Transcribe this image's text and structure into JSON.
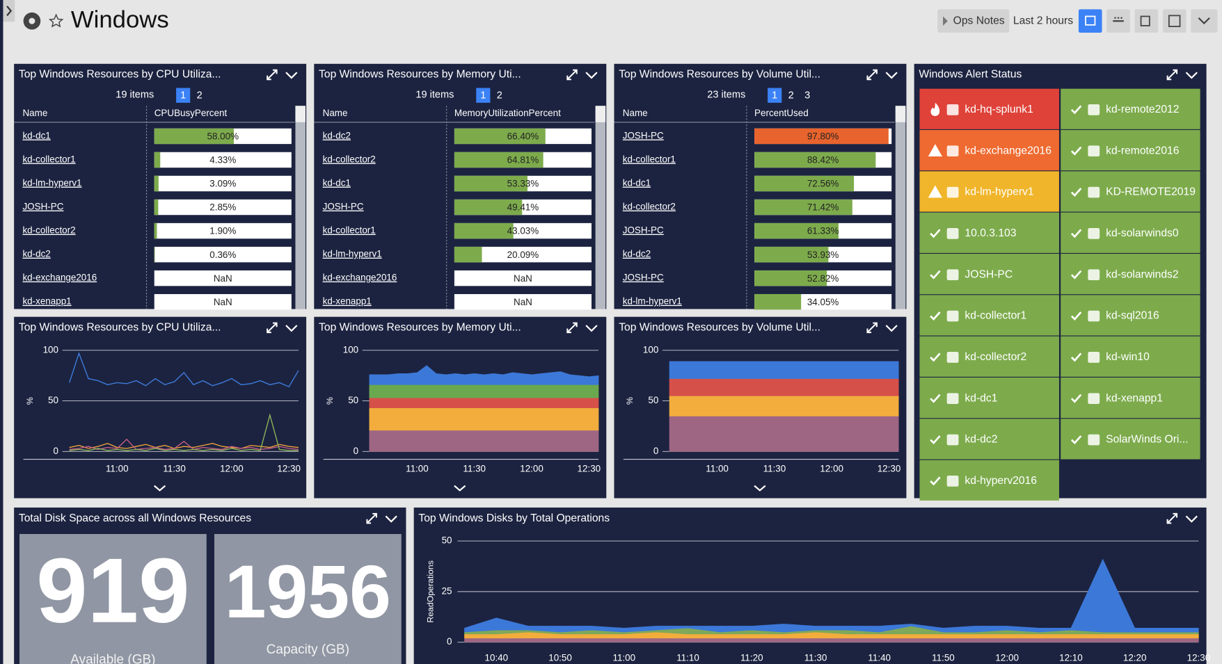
{
  "header": {
    "title": "Windows",
    "ops_notes": "Ops Notes",
    "time_range": "Last 2 hours"
  },
  "tables": [
    {
      "title": "Top Windows Resources by CPU Utiliza...",
      "items": "19 items",
      "pages": [
        "1",
        "2"
      ],
      "columns": [
        "Name",
        "CPUBusyPercent"
      ],
      "xlim": [
        0,
        100
      ],
      "names": [
        "kd-dc1",
        "kd-collector1",
        "kd-lm-hyperv1",
        "JOSH-PC",
        "kd-collector2",
        "kd-dc2",
        "kd-exchange2016",
        "kd-xenapp1"
      ],
      "values": [
        58.0,
        4.33,
        3.09,
        2.85,
        1.9,
        0.36,
        null,
        null
      ],
      "value_labels": [
        "58.00%",
        "4.33%",
        "3.09%",
        "2.85%",
        "1.90%",
        "0.36%",
        "NaN",
        "NaN"
      ],
      "colors": [
        "#7dab4c",
        "#7dab4c",
        "#7dab4c",
        "#7dab4c",
        "#7dab4c",
        "#7dab4c",
        "#7dab4c",
        "#7dab4c"
      ]
    },
    {
      "title": "Top Windows Resources by Memory Uti...",
      "items": "19 items",
      "pages": [
        "1",
        "2"
      ],
      "columns": [
        "Name",
        "MemoryUtilizationPercent"
      ],
      "xlim": [
        0,
        100
      ],
      "names": [
        "kd-dc2",
        "kd-collector2",
        "kd-dc1",
        "JOSH-PC",
        "kd-collector1",
        "kd-lm-hyperv1",
        "kd-exchange2016",
        "kd-xenapp1"
      ],
      "values": [
        66.4,
        64.81,
        53.33,
        49.41,
        43.03,
        20.09,
        null,
        null
      ],
      "value_labels": [
        "66.40%",
        "64.81%",
        "53.33%",
        "49.41%",
        "43.03%",
        "20.09%",
        "NaN",
        "NaN"
      ],
      "colors": [
        "#7dab4c",
        "#7dab4c",
        "#7dab4c",
        "#7dab4c",
        "#7dab4c",
        "#7dab4c",
        "#7dab4c",
        "#7dab4c"
      ]
    },
    {
      "title": "Top Windows Resources by Volume Util...",
      "items": "23 items",
      "pages": [
        "1",
        "2",
        "3"
      ],
      "columns": [
        "Name",
        "PercentUsed"
      ],
      "xlim": [
        0,
        100
      ],
      "names": [
        "JOSH-PC",
        "kd-collector1",
        "kd-dc1",
        "kd-collector2",
        "JOSH-PC",
        "kd-dc2",
        "JOSH-PC",
        "kd-lm-hyperv1"
      ],
      "values": [
        97.8,
        88.42,
        72.56,
        71.42,
        61.33,
        53.93,
        52.82,
        34.05
      ],
      "value_labels": [
        "97.80%",
        "88.42%",
        "72.56%",
        "71.42%",
        "61.33%",
        "53.93%",
        "52.82%",
        "34.05%"
      ],
      "colors": [
        "#e8632d",
        "#7dab4c",
        "#7dab4c",
        "#7dab4c",
        "#7dab4c",
        "#7dab4c",
        "#7dab4c",
        "#7dab4c"
      ]
    }
  ],
  "charts": [
    {
      "type": "line",
      "title": "Top Windows Resources by CPU Utiliza...",
      "y_label": "%",
      "ylim": [
        0,
        100
      ],
      "yticks": [
        0,
        50,
        100
      ],
      "x": [
        null,
        null,
        null,
        null,
        null,
        "11:00",
        null,
        null,
        null,
        null,
        null,
        "11:30",
        null,
        null,
        null,
        null,
        null,
        "12:00",
        null,
        null,
        null,
        null,
        null,
        "12:30",
        null
      ],
      "series": [
        {
          "color": "#3f7fe0",
          "values": [
            68,
            97,
            72,
            70,
            66,
            68,
            67,
            70,
            65,
            72,
            66,
            69,
            78,
            66,
            70,
            65,
            68,
            72,
            66,
            67,
            70,
            66,
            68,
            64,
            80
          ]
        },
        {
          "color": "#f0a23a",
          "values": [
            4,
            6,
            3,
            5,
            8,
            4,
            3,
            5,
            7,
            4,
            6,
            3,
            5,
            4,
            6,
            8,
            5,
            4,
            3,
            6,
            5,
            4,
            7,
            5,
            4
          ]
        },
        {
          "color": "#c95f8a",
          "values": [
            2,
            3,
            5,
            2,
            4,
            3,
            12,
            2,
            3,
            4,
            2,
            3,
            10,
            2,
            4,
            3,
            2,
            5,
            3,
            4,
            2,
            3,
            5,
            3,
            2
          ]
        },
        {
          "color": "#8fb85a",
          "values": [
            1,
            2,
            1,
            3,
            1,
            2,
            1,
            2,
            1,
            3,
            1,
            2,
            1,
            2,
            1,
            2,
            1,
            3,
            1,
            2,
            1,
            36,
            2,
            1,
            1
          ]
        }
      ]
    },
    {
      "type": "stacked_area",
      "title": "Top Windows Resources by Memory Uti...",
      "y_label": "%",
      "ylim": [
        0,
        100
      ],
      "yticks": [
        0,
        50,
        100
      ],
      "x": [
        null,
        null,
        null,
        null,
        null,
        "11:00",
        null,
        null,
        null,
        null,
        null,
        "11:30",
        null,
        null,
        null,
        null,
        null,
        "12:00",
        null,
        null,
        null,
        null,
        null,
        "12:30",
        null
      ],
      "series": [
        {
          "color": "#9e6683",
          "values": [
            21,
            21,
            21,
            21,
            21,
            21,
            21,
            21,
            21,
            21,
            21,
            21,
            21,
            21,
            21,
            21,
            21,
            21,
            21,
            21,
            21,
            21,
            21,
            21,
            21
          ]
        },
        {
          "color": "#f2ad3d",
          "values": [
            22,
            22,
            22,
            22,
            22,
            22,
            22,
            22,
            22,
            22,
            22,
            22,
            22,
            22,
            22,
            22,
            22,
            22,
            22,
            22,
            22,
            22,
            22,
            22,
            22
          ]
        },
        {
          "color": "#d6504a",
          "values": [
            10,
            10,
            10,
            10,
            10,
            10,
            10,
            10,
            10,
            10,
            10,
            10,
            10,
            10,
            10,
            10,
            10,
            10,
            10,
            10,
            10,
            10,
            10,
            10,
            10
          ]
        },
        {
          "color": "#6aa84f",
          "values": [
            13,
            13,
            13,
            13,
            13,
            13,
            13,
            13,
            13,
            13,
            13,
            13,
            13,
            13,
            13,
            13,
            13,
            13,
            13,
            13,
            13,
            13,
            13,
            13,
            13
          ]
        },
        {
          "color": "#3c78d8",
          "values": [
            10,
            10,
            10,
            11,
            11,
            12,
            19,
            11,
            10,
            11,
            10,
            11,
            10,
            11,
            10,
            12,
            11,
            10,
            11,
            12,
            13,
            10,
            9,
            8,
            9
          ]
        }
      ]
    },
    {
      "type": "stacked_area",
      "title": "Top Windows Resources by Volume Util...",
      "y_label": "%",
      "ylim": [
        0,
        100
      ],
      "yticks": [
        0,
        50,
        100
      ],
      "x": [
        null,
        null,
        null,
        null,
        null,
        "11:00",
        null,
        null,
        null,
        null,
        null,
        "11:30",
        null,
        null,
        null,
        null,
        null,
        "12:00",
        null,
        null,
        null,
        null,
        null,
        "12:30",
        null
      ],
      "series": [
        {
          "color": "#9e6683",
          "values": [
            35,
            35,
            35,
            35,
            35,
            35,
            35,
            35,
            35,
            35,
            35,
            35,
            35,
            35,
            35,
            35,
            35,
            35,
            35,
            35,
            35,
            35,
            35,
            35,
            35
          ]
        },
        {
          "color": "#f2ad3d",
          "values": [
            20,
            20,
            20,
            20,
            20,
            20,
            20,
            20,
            20,
            20,
            20,
            20,
            20,
            20,
            20,
            20,
            20,
            20,
            20,
            20,
            20,
            20,
            20,
            20,
            20
          ]
        },
        {
          "color": "#d6504a",
          "values": [
            17,
            17,
            17,
            17,
            17,
            17,
            17,
            17,
            17,
            17,
            17,
            17,
            17,
            17,
            17,
            17,
            17,
            17,
            17,
            17,
            17,
            17,
            17,
            17,
            17
          ]
        },
        {
          "color": "#3c78d8",
          "values": [
            17,
            17,
            17,
            17,
            17,
            17,
            17,
            17,
            17,
            17,
            17,
            17,
            17,
            17,
            17,
            17,
            17,
            17,
            17,
            17,
            17,
            17,
            17,
            17,
            17
          ]
        }
      ]
    },
    {
      "type": "stacked_area",
      "title": "Top Windows Disks by Total Operations",
      "y_label": "ReadOperations",
      "ylim": [
        0,
        50
      ],
      "yticks": [
        0,
        25,
        50
      ],
      "x": [
        null,
        "10:40",
        null,
        "10:50",
        null,
        "11:00",
        null,
        "11:10",
        null,
        "11:20",
        null,
        "11:30",
        null,
        "11:40",
        null,
        "11:50",
        null,
        "12:00",
        null,
        "12:10",
        null,
        "12:20",
        null,
        "12:30"
      ],
      "series": [
        {
          "color": "#9e6683",
          "values": [
            2,
            2,
            2,
            2,
            2,
            2,
            2,
            2,
            2,
            2,
            2,
            2,
            2,
            2,
            2,
            2,
            2,
            2,
            2,
            2,
            2,
            2,
            2,
            2
          ]
        },
        {
          "color": "#f2ad3d",
          "values": [
            2,
            2,
            3,
            2,
            2,
            2,
            3,
            2,
            2,
            2,
            2,
            3,
            2,
            2,
            2,
            2,
            2,
            2,
            2,
            2,
            2,
            2,
            2,
            2
          ]
        },
        {
          "color": "#7fa85a",
          "values": [
            1,
            2,
            1,
            1,
            2,
            1,
            1,
            3,
            1,
            2,
            1,
            1,
            2,
            1,
            4,
            1,
            1,
            2,
            1,
            2,
            1,
            1,
            1,
            1
          ]
        },
        {
          "color": "#3c78d8",
          "values": [
            2,
            6,
            2,
            3,
            2,
            2,
            2,
            1,
            3,
            2,
            4,
            2,
            2,
            3,
            1,
            2,
            3,
            2,
            2,
            1,
            36,
            2,
            2,
            2
          ]
        }
      ]
    }
  ],
  "disk_space": {
    "title": "Total Disk Space across all Windows Resources",
    "tiles": [
      {
        "value": 919,
        "label": "Available (GB)"
      },
      {
        "value": 1956,
        "label": "Capacity (GB)"
      }
    ]
  },
  "alerts": {
    "title": "Windows Alert Status",
    "status_colors": {
      "critical": "#df4239",
      "error": "#ee6a30",
      "warning": "#f0b52a",
      "ok": "#7dab4c"
    },
    "columns": [
      [
        {
          "name": "kd-hq-splunk1",
          "status": "critical"
        },
        {
          "name": "kd-exchange2016",
          "status": "error"
        },
        {
          "name": "kd-lm-hyperv1",
          "status": "warning"
        },
        {
          "name": "10.0.3.103",
          "status": "ok"
        },
        {
          "name": "JOSH-PC",
          "status": "ok"
        },
        {
          "name": "kd-collector1",
          "status": "ok"
        },
        {
          "name": "kd-collector2",
          "status": "ok"
        },
        {
          "name": "kd-dc1",
          "status": "ok"
        },
        {
          "name": "kd-dc2",
          "status": "ok"
        },
        {
          "name": "kd-hyperv2016",
          "status": "ok"
        }
      ],
      [
        {
          "name": "kd-remote2012",
          "status": "ok"
        },
        {
          "name": "kd-remote2016",
          "status": "ok"
        },
        {
          "name": "KD-REMOTE2019",
          "status": "ok"
        },
        {
          "name": "kd-solarwinds0",
          "status": "ok"
        },
        {
          "name": "kd-solarwinds2",
          "status": "ok"
        },
        {
          "name": "kd-sql2016",
          "status": "ok"
        },
        {
          "name": "kd-win10",
          "status": "ok"
        },
        {
          "name": "kd-xenapp1",
          "status": "ok"
        },
        {
          "name": "SolarWinds Ori...",
          "status": "ok"
        }
      ]
    ]
  }
}
